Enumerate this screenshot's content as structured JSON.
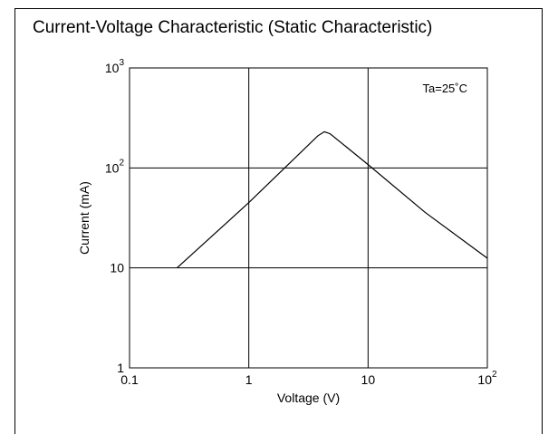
{
  "chart_data": {
    "type": "line",
    "title": "Current-Voltage Characteristic (Static Characteristic)",
    "xlabel": "Voltage (V)",
    "ylabel": "Current  (mA)",
    "x_scale": "log",
    "y_scale": "log",
    "xlim": [
      0.1,
      100
    ],
    "ylim": [
      1,
      1000
    ],
    "grid": true,
    "annotation": "Ta=25˚C",
    "x_ticks": [
      {
        "value": 0.1,
        "base": "0.1",
        "exp": ""
      },
      {
        "value": 1,
        "base": "1",
        "exp": ""
      },
      {
        "value": 10,
        "base": "10",
        "exp": ""
      },
      {
        "value": 100,
        "base": "10",
        "exp": "2"
      }
    ],
    "y_ticks": [
      {
        "value": 1,
        "base": "1",
        "exp": ""
      },
      {
        "value": 10,
        "base": "10",
        "exp": ""
      },
      {
        "value": 100,
        "base": "10",
        "exp": "2"
      },
      {
        "value": 1000,
        "base": "10",
        "exp": "3"
      }
    ],
    "series": [
      {
        "x": [
          0.25,
          1.0,
          2.0,
          3.8,
          4.3,
          4.8,
          10,
          30,
          100
        ],
        "y": [
          10,
          45,
          100,
          210,
          230,
          220,
          108,
          36,
          12.5
        ]
      }
    ]
  }
}
